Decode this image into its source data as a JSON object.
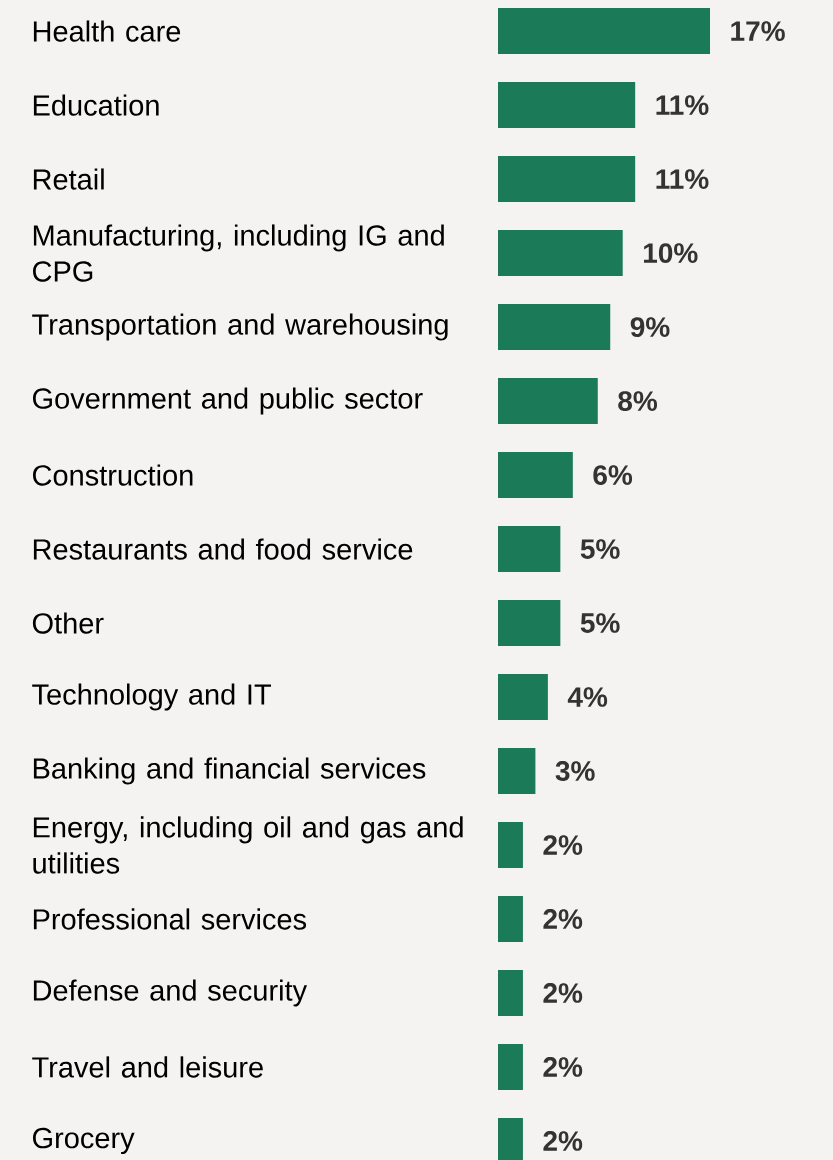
{
  "chart_data": {
    "type": "bar",
    "orientation": "horizontal",
    "data_labels": true,
    "categories": [
      "Health care",
      "Education",
      "Retail",
      "Manufacturing, including IG and CPG",
      "Transportation and warehousing",
      "Government and public sector",
      "Construction",
      "Restaurants and food service",
      "Other",
      "Technology and IT",
      "Banking and financial services",
      "Energy, including oil and gas and utilities",
      "Professional services",
      "Defense and security",
      "Travel and leisure",
      "Grocery"
    ],
    "values": [
      17,
      11,
      11,
      10,
      9,
      8,
      6,
      5,
      5,
      4,
      3,
      2,
      2,
      2,
      2,
      2
    ],
    "value_labels": [
      "17%",
      "11%",
      "11%",
      "10%",
      "9%",
      "8%",
      "6%",
      "5%",
      "5%",
      "4%",
      "3%",
      "2%",
      "2%",
      "2%",
      "2%",
      "2%"
    ],
    "color": "#1b7a57"
  }
}
